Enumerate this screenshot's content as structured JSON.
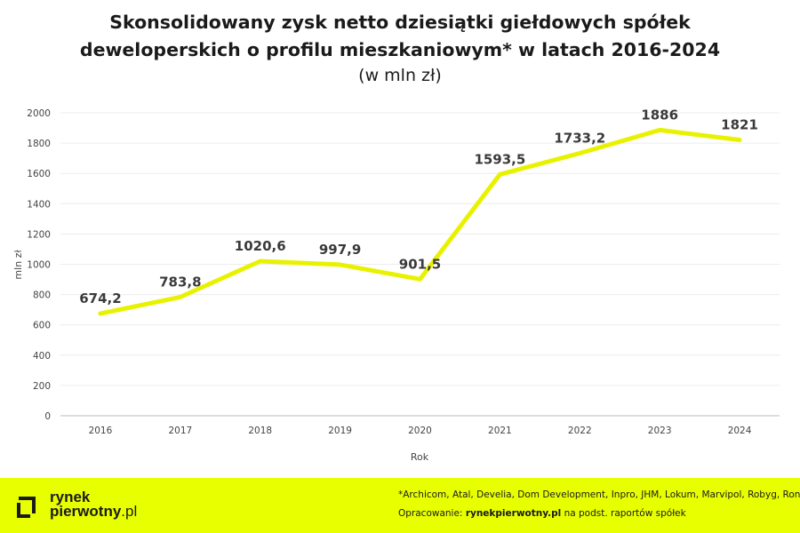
{
  "chart_data": {
    "type": "line",
    "title_line1": "Skonsolidowany zysk netto dziesiątki giełdowych spółek",
    "title_line2": "deweloperskich o profilu mieszkaniowym* w latach 2016-2024",
    "subtitle": "(w mln zł)",
    "xlabel": "Rok",
    "ylabel": "mln zł",
    "x": [
      "2016",
      "2017",
      "2018",
      "2019",
      "2020",
      "2021",
      "2022",
      "2023",
      "2024"
    ],
    "values": [
      674.2,
      783.8,
      1020.6,
      997.9,
      901.5,
      1593.5,
      1733.2,
      1886,
      1821
    ],
    "data_labels": [
      "674,2",
      "783,8",
      "1020,6",
      "997,9",
      "901,5",
      "1593,5",
      "1733,2",
      "1886",
      "1821"
    ],
    "ylim": [
      0,
      2000
    ],
    "yticks": [
      0,
      200,
      400,
      600,
      800,
      1000,
      1200,
      1400,
      1600,
      1800,
      2000
    ],
    "grid": true,
    "line_color": "#e8f200"
  },
  "footer": {
    "logo_line1": "rynek",
    "logo_line2_bold": "pierwotny",
    "logo_line2_rest": ".pl",
    "footnote": "*Archicom, Atal, Develia, Dom Development, Inpro, JHM, Lokum, Marvipol, Robyg, Ronson",
    "credit_prefix": "Opracowanie: ",
    "credit_source": "rynekpierwotny.pl",
    "credit_suffix": " na podst. raportów spółek",
    "background": "#e8ff00"
  }
}
